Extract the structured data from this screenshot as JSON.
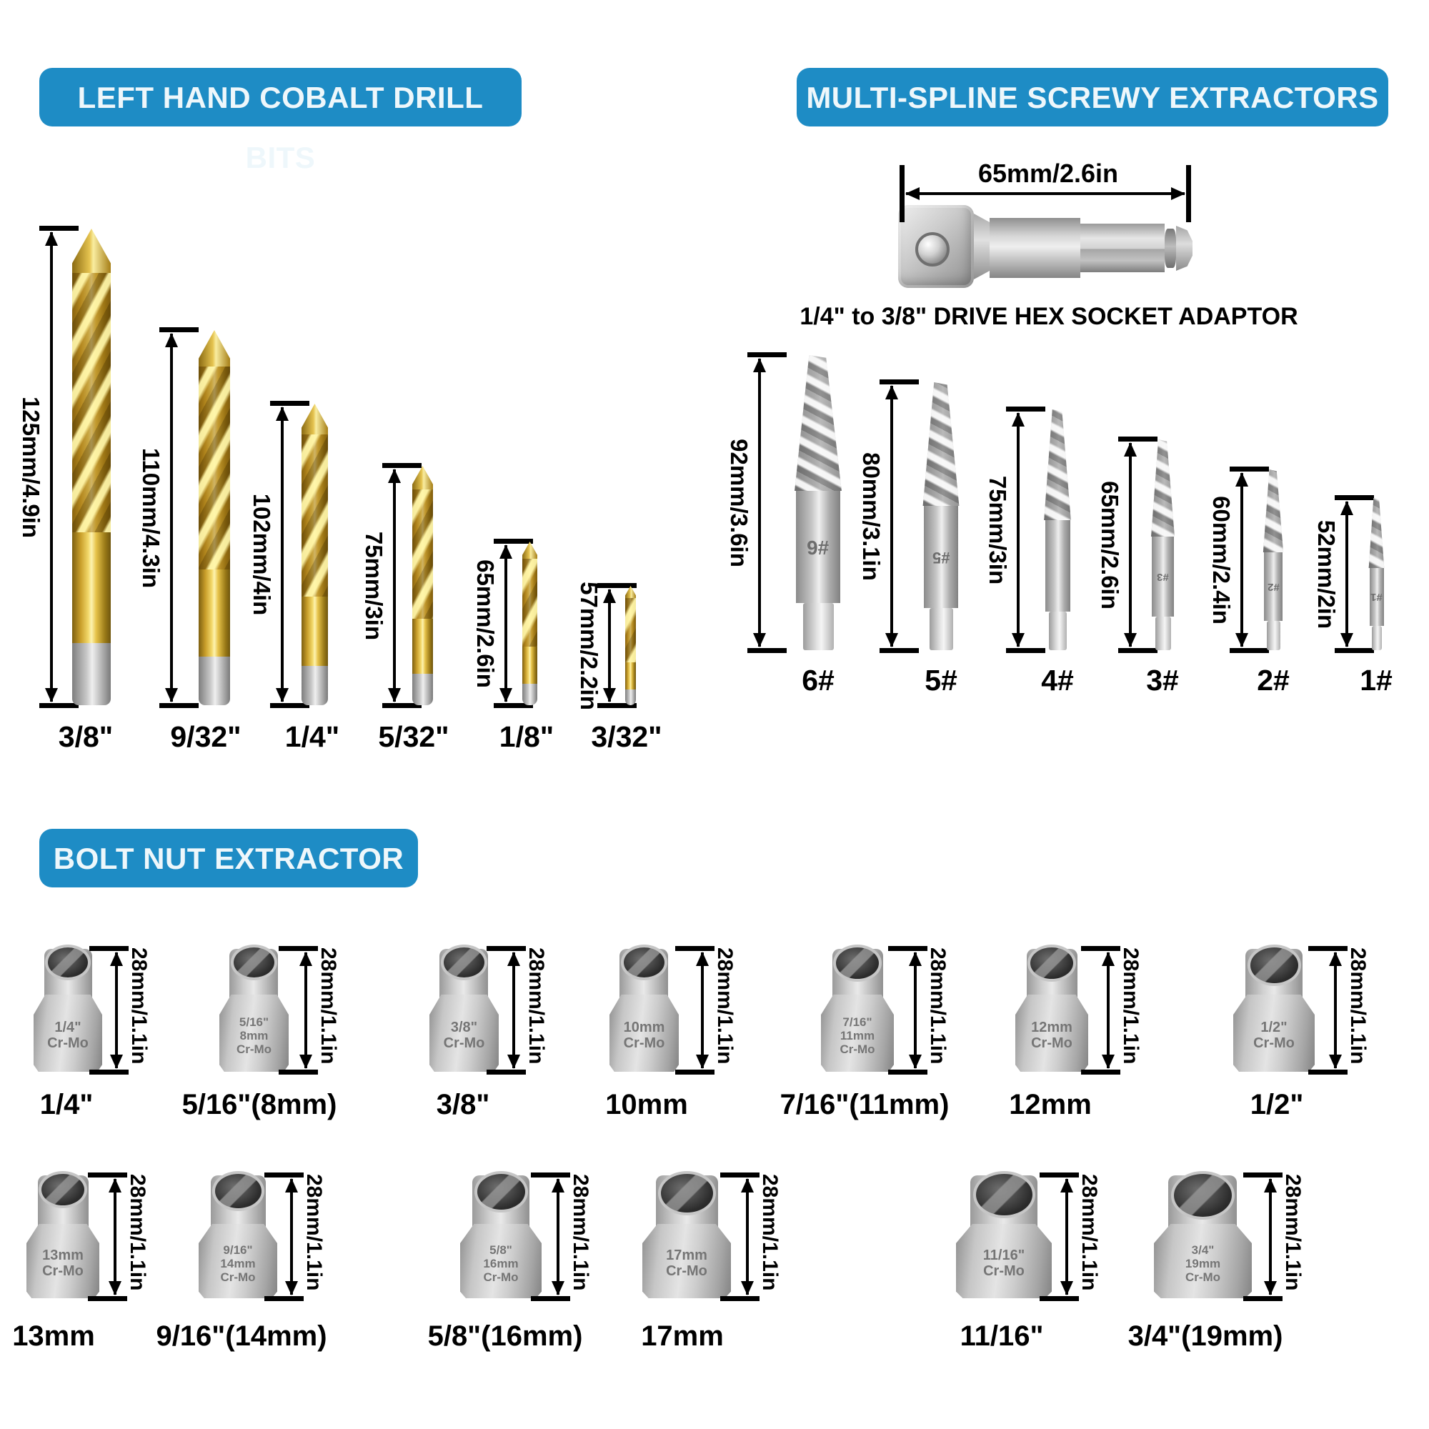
{
  "accent_blue": "#1e8cc5",
  "sections": {
    "drill_bits": {
      "header": "LEFT HAND COBALT DRILL BITS",
      "items": [
        {
          "length_label": "125mm/4.9in",
          "size_label": "3/8\""
        },
        {
          "length_label": "110mm/4.3in",
          "size_label": "9/32\""
        },
        {
          "length_label": "102mm/4in",
          "size_label": "1/4\""
        },
        {
          "length_label": "75mm/3in",
          "size_label": "5/32\""
        },
        {
          "length_label": "65mm/2.6in",
          "size_label": "1/8\""
        },
        {
          "length_label": "57mm/2.2in",
          "size_label": "3/32\""
        }
      ]
    },
    "extractors": {
      "header": "MULTI-SPLINE SCREWY EXTRACTORS",
      "adaptor": {
        "length_label": "65mm/2.6in",
        "caption": "1/4\" to 3/8\" DRIVE HEX SOCKET ADAPTOR"
      },
      "items": [
        {
          "length_label": "92mm/3.6in",
          "size_label": "6#",
          "engraving": "#6"
        },
        {
          "length_label": "80mm/3.1in",
          "size_label": "5#",
          "engraving": "#5"
        },
        {
          "length_label": "75mm/3in",
          "size_label": "4#",
          "engraving": ""
        },
        {
          "length_label": "65mm/2.6in",
          "size_label": "3#",
          "engraving": "#3"
        },
        {
          "length_label": "60mm/2.4in",
          "size_label": "2#",
          "engraving": "#2"
        },
        {
          "length_label": "52mm/2in",
          "size_label": "1#",
          "engraving": "#1"
        }
      ]
    },
    "bolt_nut": {
      "header": "BOLT NUT EXTRACTOR",
      "height_label": "28mm/1.1in",
      "row1": [
        {
          "size_label": "1/4\"",
          "engraving": [
            "1/4\"",
            "Cr-Mo"
          ]
        },
        {
          "size_label": "5/16\"(8mm)",
          "engraving": [
            "5/16\"",
            "8mm",
            "Cr-Mo"
          ]
        },
        {
          "size_label": "3/8\"",
          "engraving": [
            "3/8\"",
            "Cr-Mo"
          ]
        },
        {
          "size_label": "10mm",
          "engraving": [
            "10mm",
            "Cr-Mo"
          ]
        },
        {
          "size_label": "7/16\"(11mm)",
          "engraving": [
            "7/16\"",
            "11mm",
            "Cr-Mo"
          ]
        },
        {
          "size_label": "12mm",
          "engraving": [
            "12mm",
            "Cr-Mo"
          ]
        },
        {
          "size_label": "1/2\"",
          "engraving": [
            "1/2\"",
            "Cr-Mo"
          ]
        }
      ],
      "row2": [
        {
          "size_label": "13mm",
          "engraving": [
            "13mm",
            "Cr-Mo"
          ]
        },
        {
          "size_label": "9/16\"(14mm)",
          "engraving": [
            "9/16\"",
            "14mm",
            "Cr-Mo"
          ]
        },
        {
          "size_label": "5/8\"(16mm)",
          "engraving": [
            "5/8\"",
            "16mm",
            "Cr-Mo"
          ]
        },
        {
          "size_label": "17mm",
          "engraving": [
            "17mm",
            "Cr-Mo"
          ]
        },
        {
          "size_label": "11/16\"",
          "engraving": [
            "11/16\"",
            "Cr-Mo"
          ]
        },
        {
          "size_label": "3/4\"(19mm)",
          "engraving": [
            "3/4\"",
            "19mm",
            "Cr-Mo"
          ]
        }
      ]
    }
  }
}
